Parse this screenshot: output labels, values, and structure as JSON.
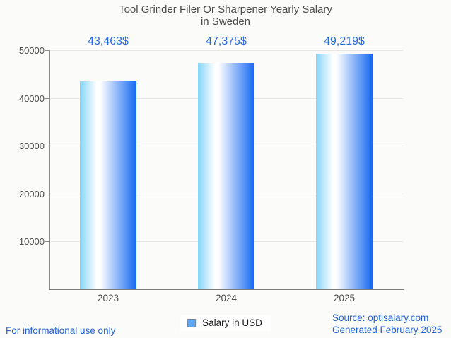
{
  "title": {
    "line1": "Tool Grinder Filer Or Sharpener Yearly Salary",
    "line2": "in Sweden"
  },
  "chart_data": {
    "type": "bar",
    "title": "Tool Grinder Filer Or Sharpener Yearly Salary in Sweden",
    "categories": [
      "2023",
      "2024",
      "2025"
    ],
    "values": [
      43463,
      47375,
      49219
    ],
    "value_labels": [
      "43,463$",
      "47,375$",
      "49,219$"
    ],
    "xlabel": "",
    "ylabel": "",
    "ylim": [
      0,
      50000
    ],
    "yticks": [
      10000,
      20000,
      30000,
      40000,
      50000
    ],
    "grid": true,
    "legend_position": "bottom",
    "bar_gradient": [
      "#85d5f8",
      "#ffffff",
      "#1468f2"
    ]
  },
  "legend": {
    "label": "Salary in USD",
    "swatch_color": "#60a8f0"
  },
  "footer": {
    "disclaimer": "For informational use only",
    "source": "Source: optisalary.com",
    "generated": "Generated February 2025"
  },
  "colors": {
    "background": "#fbfbf9",
    "title_text": "#4c4c4c",
    "axis_text": "#4d4d4d",
    "value_label_blue": "#2b6ce2",
    "footer_blue": "#2263d6",
    "gridline": "#e7e7e4",
    "axis_line": "#7d7d7d"
  }
}
